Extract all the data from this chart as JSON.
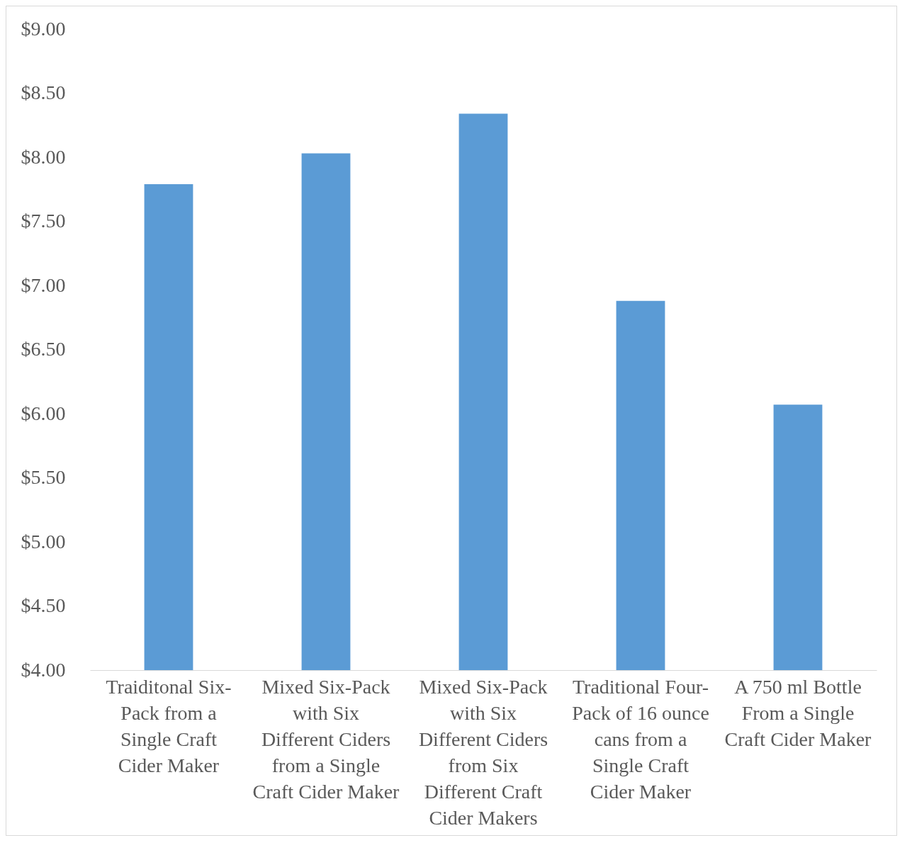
{
  "chart_data": {
    "type": "bar",
    "categories": [
      "Traiditonal Six-Pack from a Single Craft Cider Maker",
      "Mixed Six-Pack with Six Different Ciders from a Single Craft Cider Maker",
      "Mixed Six-Pack with Six Different Ciders from Six Different Craft Cider Makers",
      "Traditional Four-Pack of 16 ounce cans from a Single Craft Cider Maker",
      "A 750 ml Bottle From a Single Craft Cider Maker"
    ],
    "values": [
      7.79,
      8.03,
      8.34,
      6.88,
      6.07
    ],
    "color": "#5b9bd5",
    "ylim": [
      4,
      9
    ],
    "yticks": [
      {
        "value": 4,
        "label": "$4.00"
      },
      {
        "value": 4.5,
        "label": "$4.50"
      },
      {
        "value": 5,
        "label": "$5.00"
      },
      {
        "value": 5.5,
        "label": "$5.50"
      },
      {
        "value": 6,
        "label": "$6.00"
      },
      {
        "value": 6.5,
        "label": "$6.50"
      },
      {
        "value": 7,
        "label": "$7.00"
      },
      {
        "value": 7.5,
        "label": "$7.50"
      },
      {
        "value": 8,
        "label": "$8.00"
      },
      {
        "value": 8.5,
        "label": "$8.50"
      },
      {
        "value": 9,
        "label": "$9.00"
      }
    ],
    "grid": false
  }
}
